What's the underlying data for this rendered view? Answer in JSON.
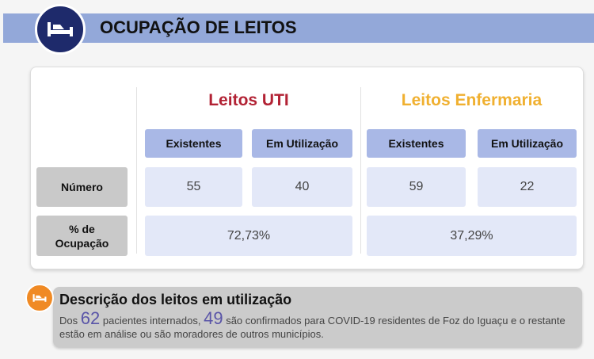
{
  "header": {
    "title": "OCUPAÇÃO DE LEITOS",
    "icon": "bed-icon"
  },
  "table": {
    "uti": {
      "title": "Leitos UTI",
      "color": "#b22234",
      "existentes_label": "Existentes",
      "em_utilizacao_label": "Em Utilização",
      "existentes": "55",
      "em_utilizacao": "40",
      "ocupacao": "72,73%"
    },
    "enfermaria": {
      "title": "Leitos Enfermaria",
      "color": "#f0b030",
      "existentes_label": "Existentes",
      "em_utilizacao_label": "Em Utilização",
      "existentes": "59",
      "em_utilizacao": "22",
      "ocupacao": "37,29%"
    },
    "row_numero": "Número",
    "row_ocupacao_1": "% de",
    "row_ocupacao_2": "Ocupação"
  },
  "descricao": {
    "title": "Descrição dos leitos em utilização",
    "t1": "Dos",
    "n1": "62",
    "t2": "pacientes internados,",
    "n2": "49",
    "t3": "são confirmados para COVID-19 residentes de Foz do Iguaçu e o restante estão em análise ou são moradores de outros municípios."
  }
}
